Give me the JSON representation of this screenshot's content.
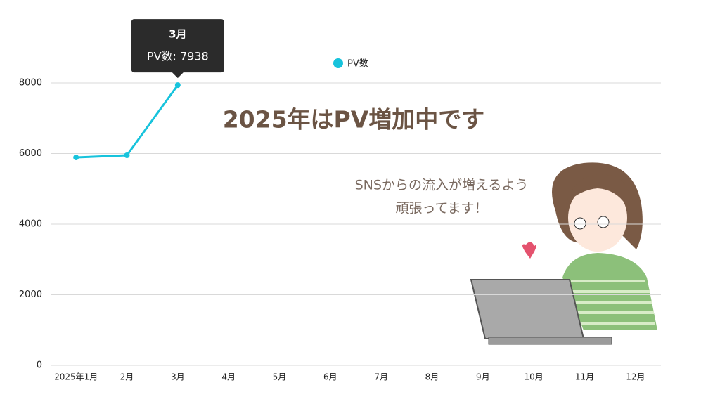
{
  "chart_data": {
    "type": "line",
    "categories": [
      "2025年1月",
      "2月",
      "3月",
      "4月",
      "5月",
      "6月",
      "7月",
      "8月",
      "9月",
      "10月",
      "11月",
      "12月"
    ],
    "series": [
      {
        "name": "PV数",
        "color": "#17c3dc",
        "values": [
          5890,
          5950,
          7938,
          null,
          null,
          null,
          null,
          null,
          null,
          null,
          null,
          null
        ]
      }
    ],
    "ylim": [
      0,
      8000
    ],
    "yticks": [
      0,
      2000,
      4000,
      6000,
      8000
    ],
    "grid": true,
    "tooltip": {
      "category": 2,
      "title": "3月",
      "label": "PV数: 7938"
    },
    "annotations": [
      "2025年はPV増加中です",
      "SNSからの流入が増えるよう",
      "頑張ってます！"
    ]
  }
}
